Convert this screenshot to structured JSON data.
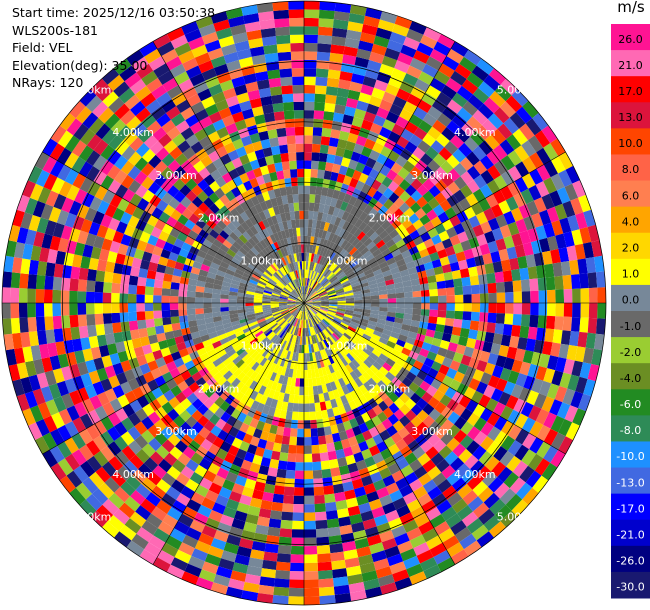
{
  "info": {
    "start_time": "Start time: 2025/12/16 03:50:38",
    "site": "WLS200s-181",
    "field": "Field: VEL",
    "elevation": "Elevation(deg): 35.00",
    "nrays": "NRays: 120"
  },
  "chart_data": {
    "type": "ppi_polar_heatmap",
    "title": "",
    "field": "VEL",
    "units": "m/s",
    "elevation_deg": 35.0,
    "n_rays": 120,
    "max_range_km": 5.0,
    "range_ring_labels": [
      "1.00km",
      "2.00km",
      "3.00km",
      "4.00km",
      "5.00km"
    ],
    "azimuth_lines_every_deg": 30,
    "colorbar": {
      "label": "m/s",
      "ticks": [
        "26.0",
        "21.0",
        "17.0",
        "13.0",
        "10.0",
        "8.0",
        "6.0",
        "4.0",
        "2.0",
        "1.0",
        "0.0",
        "-1.0",
        "-2.0",
        "-4.0",
        "-6.0",
        "-8.0",
        "-10.0",
        "-13.0",
        "-17.0",
        "-21.0",
        "-26.0",
        "-30.0"
      ],
      "colors": [
        "#ff1493",
        "#ff69b4",
        "#ff0000",
        "#dc143c",
        "#ff4500",
        "#ff6347",
        "#ff7f50",
        "#ffa500",
        "#ffd700",
        "#ffff00",
        "#778899",
        "#696969",
        "#9acd32",
        "#6b8e23",
        "#228b22",
        "#2e8b57",
        "#1e90ff",
        "#4169e1",
        "#0000ff",
        "#0000cd",
        "#000080",
        "#191970"
      ]
    },
    "regions": [
      {
        "range_km": [
          0,
          0.8
        ],
        "description": "mixed near field",
        "dominant_values": [
          0.0,
          -1.0,
          1.0
        ]
      },
      {
        "range_km": [
          0.8,
          2.0
        ],
        "north_half_value": -1.0,
        "south_half_value": 1.0,
        "west_east_value": 0.0
      },
      {
        "range_km": [
          2.0,
          5.0
        ],
        "description": "noise, random velocities across full scale"
      }
    ]
  }
}
